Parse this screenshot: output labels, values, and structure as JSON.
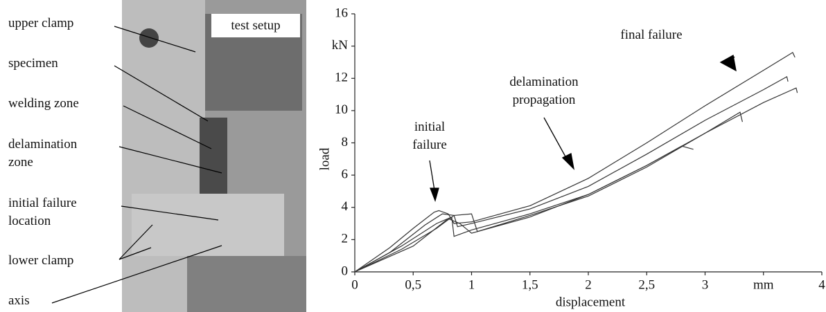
{
  "photo": {
    "title": "test setup",
    "labels": [
      [
        "upper clamp"
      ],
      [
        "specimen"
      ],
      [
        "welding zone"
      ],
      [
        "delamination",
        "zone"
      ],
      [
        "initial failure",
        "location"
      ],
      [
        "lower clamp"
      ],
      [
        "axis"
      ]
    ]
  },
  "chart_data": {
    "type": "line",
    "x_label": "displacement",
    "y_label": "load",
    "annotations": [
      [
        "initial",
        "failure"
      ],
      [
        "delamination",
        "propagation"
      ],
      [
        "final failure"
      ]
    ],
    "xlim": [
      0,
      4
    ],
    "ylim": [
      0,
      16
    ],
    "xticks": [
      0,
      {
        "value": 0.5,
        "label": "0,5"
      },
      1,
      {
        "value": 1.5,
        "label": "1,5"
      },
      2,
      {
        "value": 2.5,
        "label": "2,5"
      },
      3,
      {
        "value": 3.5,
        "label": "mm"
      },
      4
    ],
    "yticks": [
      0,
      2,
      4,
      6,
      8,
      10,
      12,
      {
        "value": 14,
        "label": "kN"
      },
      16
    ],
    "series": [
      {
        "color": "#333",
        "x": [
          0,
          0.3,
          0.5,
          0.68,
          0.72,
          0.8,
          0.85,
          1.0,
          1.5,
          2.0,
          2.5,
          3.0,
          3.5,
          3.75,
          3.77
        ],
        "values": [
          0,
          1.5,
          2.7,
          3.7,
          3.8,
          3.6,
          3.0,
          3.1,
          4.1,
          5.8,
          8.0,
          10.3,
          12.5,
          13.6,
          13.3
        ]
      },
      {
        "color": "#333",
        "x": [
          0,
          0.3,
          0.6,
          0.75,
          0.85,
          0.88,
          1.0,
          1.5,
          2.0,
          2.5,
          3.0,
          3.5,
          3.7,
          3.71
        ],
        "values": [
          0,
          1.2,
          2.9,
          3.6,
          3.5,
          2.8,
          3.0,
          3.9,
          5.3,
          7.3,
          9.4,
          11.3,
          12.1,
          11.8
        ]
      },
      {
        "color": "#333",
        "x": [
          0,
          0.4,
          0.7,
          0.83,
          0.85,
          1.0,
          1.5,
          2.0,
          2.5,
          3.0,
          3.5,
          3.78,
          3.79
        ],
        "values": [
          0,
          1.6,
          3.0,
          3.4,
          2.2,
          2.6,
          3.6,
          4.8,
          6.6,
          8.6,
          10.5,
          11.4,
          11.1
        ]
      },
      {
        "color": "#333",
        "x": [
          0,
          0.4,
          0.7,
          0.85,
          1.0,
          1.05,
          1.5,
          2.0,
          2.5,
          3.0,
          3.3,
          3.32
        ],
        "values": [
          0,
          1.4,
          2.7,
          3.5,
          3.6,
          2.5,
          3.5,
          4.7,
          6.5,
          8.6,
          9.9,
          9.3
        ]
      },
      {
        "color": "#333",
        "x": [
          0,
          0.5,
          0.8,
          0.9,
          1.0,
          1.5,
          2.0,
          2.5,
          2.8,
          2.9
        ],
        "values": [
          0,
          1.6,
          3.3,
          3.0,
          2.4,
          3.4,
          4.8,
          6.6,
          7.8,
          7.6
        ]
      }
    ]
  }
}
